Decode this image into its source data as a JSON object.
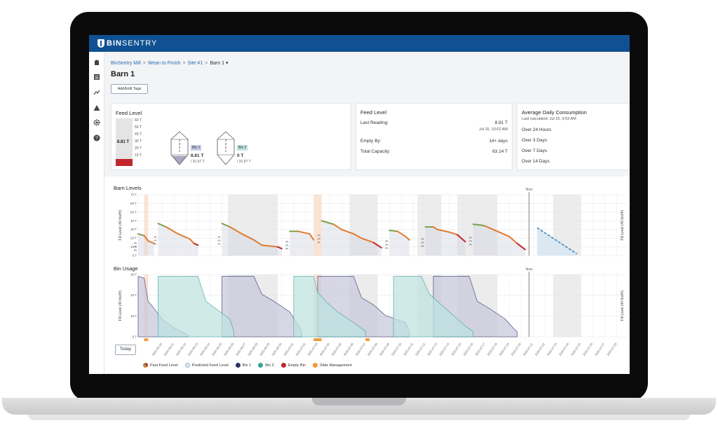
{
  "app": {
    "brand_bold": "BIN",
    "brand_rest": "SENTRY"
  },
  "nav": {
    "icons": [
      "silo-icon",
      "list-icon",
      "trend-icon",
      "alert-icon",
      "gear-icon",
      "help-icon"
    ]
  },
  "breadcrumb": {
    "items": [
      "BinSentry Mill",
      "Wean to Finish",
      "Site #1",
      "Barn 1 ▾"
    ]
  },
  "page": {
    "title": "Barn 1",
    "tags_button": "Add/Edit Tags"
  },
  "feed_level_card": {
    "title": "Feed Level",
    "gauge_value": "8.81 T",
    "gauge_ticks": [
      "60 T",
      "50 T",
      "40 T",
      "30 T",
      "20 T",
      "10 T"
    ],
    "gauge_fill_fraction": 0.14,
    "bins": [
      {
        "name": "Bin 1",
        "value": "8.81 T",
        "capacity": "/ 31.57 T",
        "fill_fraction": 0.28,
        "rings": [
          "4",
          "3",
          "2",
          "1"
        ]
      },
      {
        "name": "Bin 2",
        "value": "0 T",
        "capacity": "/ 31.57 T",
        "fill_fraction": 0,
        "rings": [
          "4",
          "3",
          "2",
          "1"
        ]
      }
    ]
  },
  "summary_card": {
    "title": "Feed Level",
    "last_reading_label": "Last Reading:",
    "last_reading_value": "8.81 T",
    "last_reading_time": "Jul 15, 10:02 AM",
    "empty_by_label": "Empty By:",
    "empty_by_value": "14+ days",
    "capacity_label": "Total Capacity:",
    "capacity_value": "63.14 T"
  },
  "consumption_card": {
    "title": "Average Daily Consumption",
    "subtitle": "Last calculated: Jul 15, 9:53 AM",
    "rows": [
      "Over 24 Hours",
      "Over 3 Days",
      "Over 7 Days",
      "Over 14 Days"
    ]
  },
  "charts": {
    "barn_levels_title": "Barn Levels",
    "bin_usage_title": "Bin Usage",
    "now_label": "Now",
    "ylabel": "Fill Level (40 lbs/ft³)",
    "today_button": "Today"
  },
  "chart_data": [
    {
      "type": "line",
      "title": "Barn Levels",
      "ylabel": "Fill Level (40 lbs/ft³)",
      "y_ticks": [
        "70 T",
        "60 T",
        "50 T",
        "40 T",
        "30 T",
        "20 T",
        "10 T",
        "0 T"
      ],
      "ylim": [
        0,
        70
      ],
      "now_label": "Now",
      "series": [
        {
          "name": "Past Feed Level",
          "segments": [
            [
              [
                0,
                25
              ],
              [
                3,
                23
              ],
              [
                5,
                17
              ],
              [
                8,
                14
              ]
            ],
            [
              [
                10,
                37
              ],
              [
                12,
                35
              ],
              [
                14,
                33
              ],
              [
                20,
                25
              ],
              [
                26,
                19
              ],
              [
                28,
                14
              ],
              [
                30,
                12
              ]
            ],
            [
              [
                42,
                37
              ],
              [
                44,
                35
              ],
              [
                46,
                33
              ],
              [
                52,
                25
              ],
              [
                58,
                18
              ],
              [
                62,
                12
              ],
              [
                70,
                10
              ],
              [
                72,
                8
              ]
            ],
            [
              [
                76,
                28
              ],
              [
                80,
                28
              ],
              [
                86,
                25
              ],
              [
                88,
                18
              ]
            ],
            [
              [
                92,
                40
              ],
              [
                95,
                38
              ],
              [
                98,
                36
              ],
              [
                102,
                30
              ],
              [
                108,
                25
              ],
              [
                112,
                20
              ],
              [
                118,
                15
              ],
              [
                122,
                9
              ]
            ],
            [
              [
                126,
                29
              ],
              [
                130,
                28
              ],
              [
                134,
                22
              ],
              [
                136,
                18
              ]
            ],
            [
              [
                144,
                33
              ],
              [
                148,
                33
              ],
              [
                150,
                30
              ],
              [
                156,
                27
              ],
              [
                160,
                24
              ],
              [
                164,
                16
              ]
            ],
            [
              [
                168,
                36
              ],
              [
                172,
                35
              ],
              [
                174,
                34
              ],
              [
                180,
                28
              ],
              [
                186,
                22
              ],
              [
                190,
                14
              ],
              [
                194,
                7
              ]
            ]
          ]
        },
        {
          "name": "Predicted Feed Level",
          "segments": [
            [
              [
                200,
                32
              ],
              [
                220,
                2
              ]
            ]
          ]
        }
      ]
    },
    {
      "type": "area",
      "title": "Bin Usage",
      "ylabel": "Fill Level (40 lbs/ft³)",
      "y_ticks": [
        "30 T",
        "20 T",
        "10 T",
        "0 T"
      ],
      "ylim": [
        0,
        35
      ],
      "now_label": "Now",
      "x_tick_labels": [
        "2025-06-20",
        "2025-06-21",
        "2025-06-22",
        "2025-06-23",
        "2025-06-24",
        "2025-06-25",
        "2025-06-26",
        "2025-06-27",
        "2025-06-28",
        "2025-06-29",
        "2025-06-30",
        "2025-07-01",
        "2025-07-02",
        "2025-07-03",
        "2025-07-04",
        "2025-07-05",
        "2025-07-06",
        "2025-07-07",
        "2025-07-08",
        "2025-07-09",
        "2025-07-10",
        "2025-07-11",
        "2025-07-12",
        "2025-07-13",
        "2025-07-14",
        "2025-07-15",
        "2025-07-16",
        "2025-07-17",
        "2025-07-18",
        "2025-07-19",
        "2025-07-20",
        "2025-07-21",
        "2025-07-22",
        "2025-07-23",
        "2025-07-24",
        "2025-07-25",
        "2025-07-26",
        "2025-07-27",
        "2025-07-28"
      ],
      "series": [
        {
          "name": "Bin 1",
          "segments": [
            [
              [
                0,
                34
              ],
              [
                3,
                33
              ],
              [
                5,
                20
              ],
              [
                8,
                16
              ],
              [
                12,
                10
              ],
              [
                18,
                5
              ],
              [
                25,
                1
              ]
            ],
            [
              [
                42,
                34
              ],
              [
                58,
                34
              ],
              [
                62,
                24
              ],
              [
                68,
                20
              ],
              [
                76,
                14
              ],
              [
                80,
                7
              ],
              [
                82,
                3
              ]
            ],
            [
              [
                90,
                34
              ],
              [
                108,
                34
              ],
              [
                112,
                22
              ],
              [
                118,
                18
              ],
              [
                124,
                12
              ],
              [
                134,
                8
              ],
              [
                136,
                3
              ]
            ],
            [
              [
                148,
                34
              ],
              [
                166,
                34
              ],
              [
                170,
                20
              ],
              [
                176,
                16
              ],
              [
                184,
                10
              ],
              [
                188,
                5
              ],
              [
                190,
                3
              ]
            ]
          ]
        },
        {
          "name": "Bin 2",
          "segments": [
            [
              [
                10,
                34
              ],
              [
                30,
                34
              ],
              [
                34,
                20
              ],
              [
                40,
                15
              ],
              [
                46,
                10
              ],
              [
                48,
                3
              ]
            ],
            [
              [
                78,
                34
              ],
              [
                88,
                34
              ],
              [
                90,
                25
              ],
              [
                94,
                20
              ],
              [
                100,
                14
              ],
              [
                108,
                8
              ],
              [
                114,
                3
              ]
            ],
            [
              [
                128,
                34
              ],
              [
                142,
                34
              ],
              [
                146,
                24
              ],
              [
                152,
                18
              ],
              [
                158,
                12
              ],
              [
                164,
                6
              ],
              [
                168,
                3
              ]
            ]
          ]
        }
      ]
    }
  ],
  "legend": {
    "items": [
      {
        "label": "Past Feed Level",
        "color": "#e07a2e"
      },
      {
        "label": "Predicted Feed Level",
        "color": "#dbe8f2"
      },
      {
        "label": "Bin 1",
        "color": "#2c3566"
      },
      {
        "label": "Bin 2",
        "color": "#3aa39f"
      },
      {
        "label": "Empty Bin",
        "color": "#c0272d"
      },
      {
        "label": "Slide Management",
        "color": "#f29a3a"
      }
    ]
  }
}
